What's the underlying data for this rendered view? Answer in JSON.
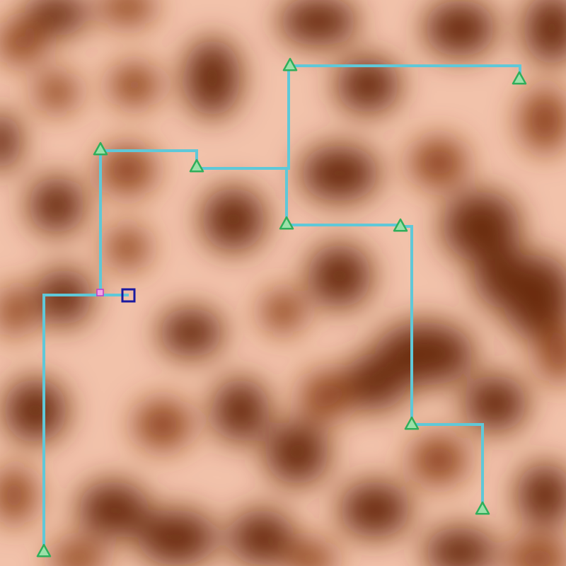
{
  "colors": {
    "terrain_light": "#f2c2aa",
    "terrain_mid": "#d58a63",
    "terrain_dark": "#6b2a08",
    "path": "#5fc8d8",
    "node_fill": "#9be0a8",
    "node_stroke": "#2fae5a",
    "cursor": "#1a1aa0",
    "start_marker": "#c03cc8"
  },
  "icons": {
    "node": "triangle-icon",
    "cursor": "square-cursor-icon",
    "start": "small-square-marker-icon"
  }
}
